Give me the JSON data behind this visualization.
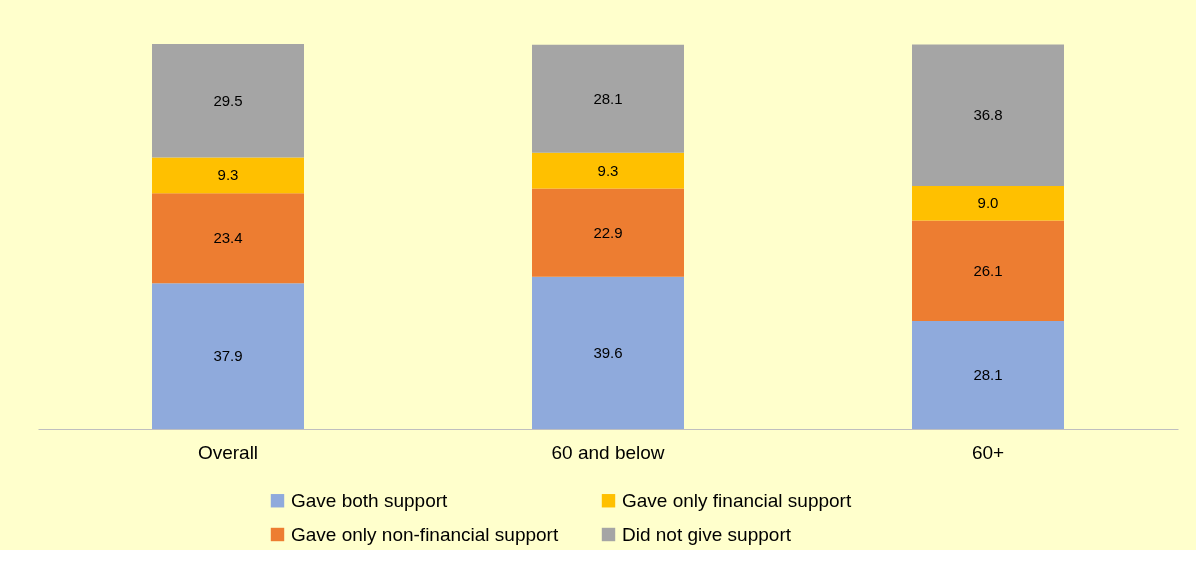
{
  "chart_data": {
    "type": "bar",
    "stacked": true,
    "data_labels": true,
    "legend": "bottom",
    "grid": false,
    "categories": [
      "Overall",
      "60 and below",
      "60+"
    ],
    "series": [
      {
        "name": "Gave both support",
        "color": "#8faadc",
        "values": [
          37.9,
          39.6,
          28.1
        ]
      },
      {
        "name": "Gave only non-financial support",
        "color": "#ed7d31",
        "values": [
          23.4,
          22.9,
          26.1
        ]
      },
      {
        "name": "Gave only financial support",
        "color": "#ffc000",
        "values": [
          9.3,
          9.3,
          9.0
        ],
        "value_labels": [
          "9.3",
          "9.3",
          "9.0"
        ]
      },
      {
        "name": "Did not give support",
        "color": "#a5a5a5",
        "values": [
          29.5,
          28.1,
          36.8
        ]
      }
    ]
  }
}
